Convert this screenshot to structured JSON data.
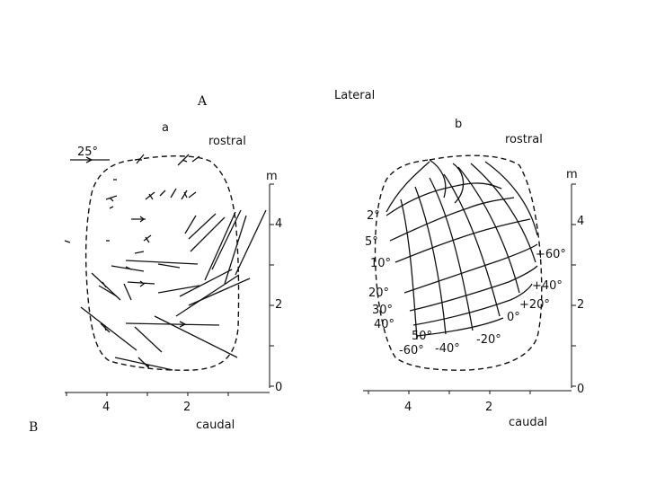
{
  "figure": {
    "label_A": "A",
    "label_B": "B",
    "title": "Lateral",
    "panel_a": {
      "letter": "a",
      "rostral": "rostral",
      "caudal": "caudal",
      "scale_label": "25°",
      "axis_unit": "m",
      "y_ticks": [
        "4",
        "2",
        "0"
      ],
      "x_ticks": [
        "4",
        "2"
      ]
    },
    "panel_b": {
      "letter": "b",
      "rostral": "rostral",
      "caudal": "caudal",
      "axis_unit": "m",
      "y_ticks": [
        "4",
        "2",
        "0"
      ],
      "x_ticks": [
        "4",
        "2"
      ],
      "elevation_labels": [
        "2°",
        "5°",
        "10°",
        "20°",
        "30°",
        "40°",
        "50°"
      ],
      "azimuth_left": [
        "-60°",
        "-40°",
        "-20°",
        "0°"
      ],
      "azimuth_right": [
        "+20°",
        "+40°",
        "+60°"
      ]
    }
  }
}
